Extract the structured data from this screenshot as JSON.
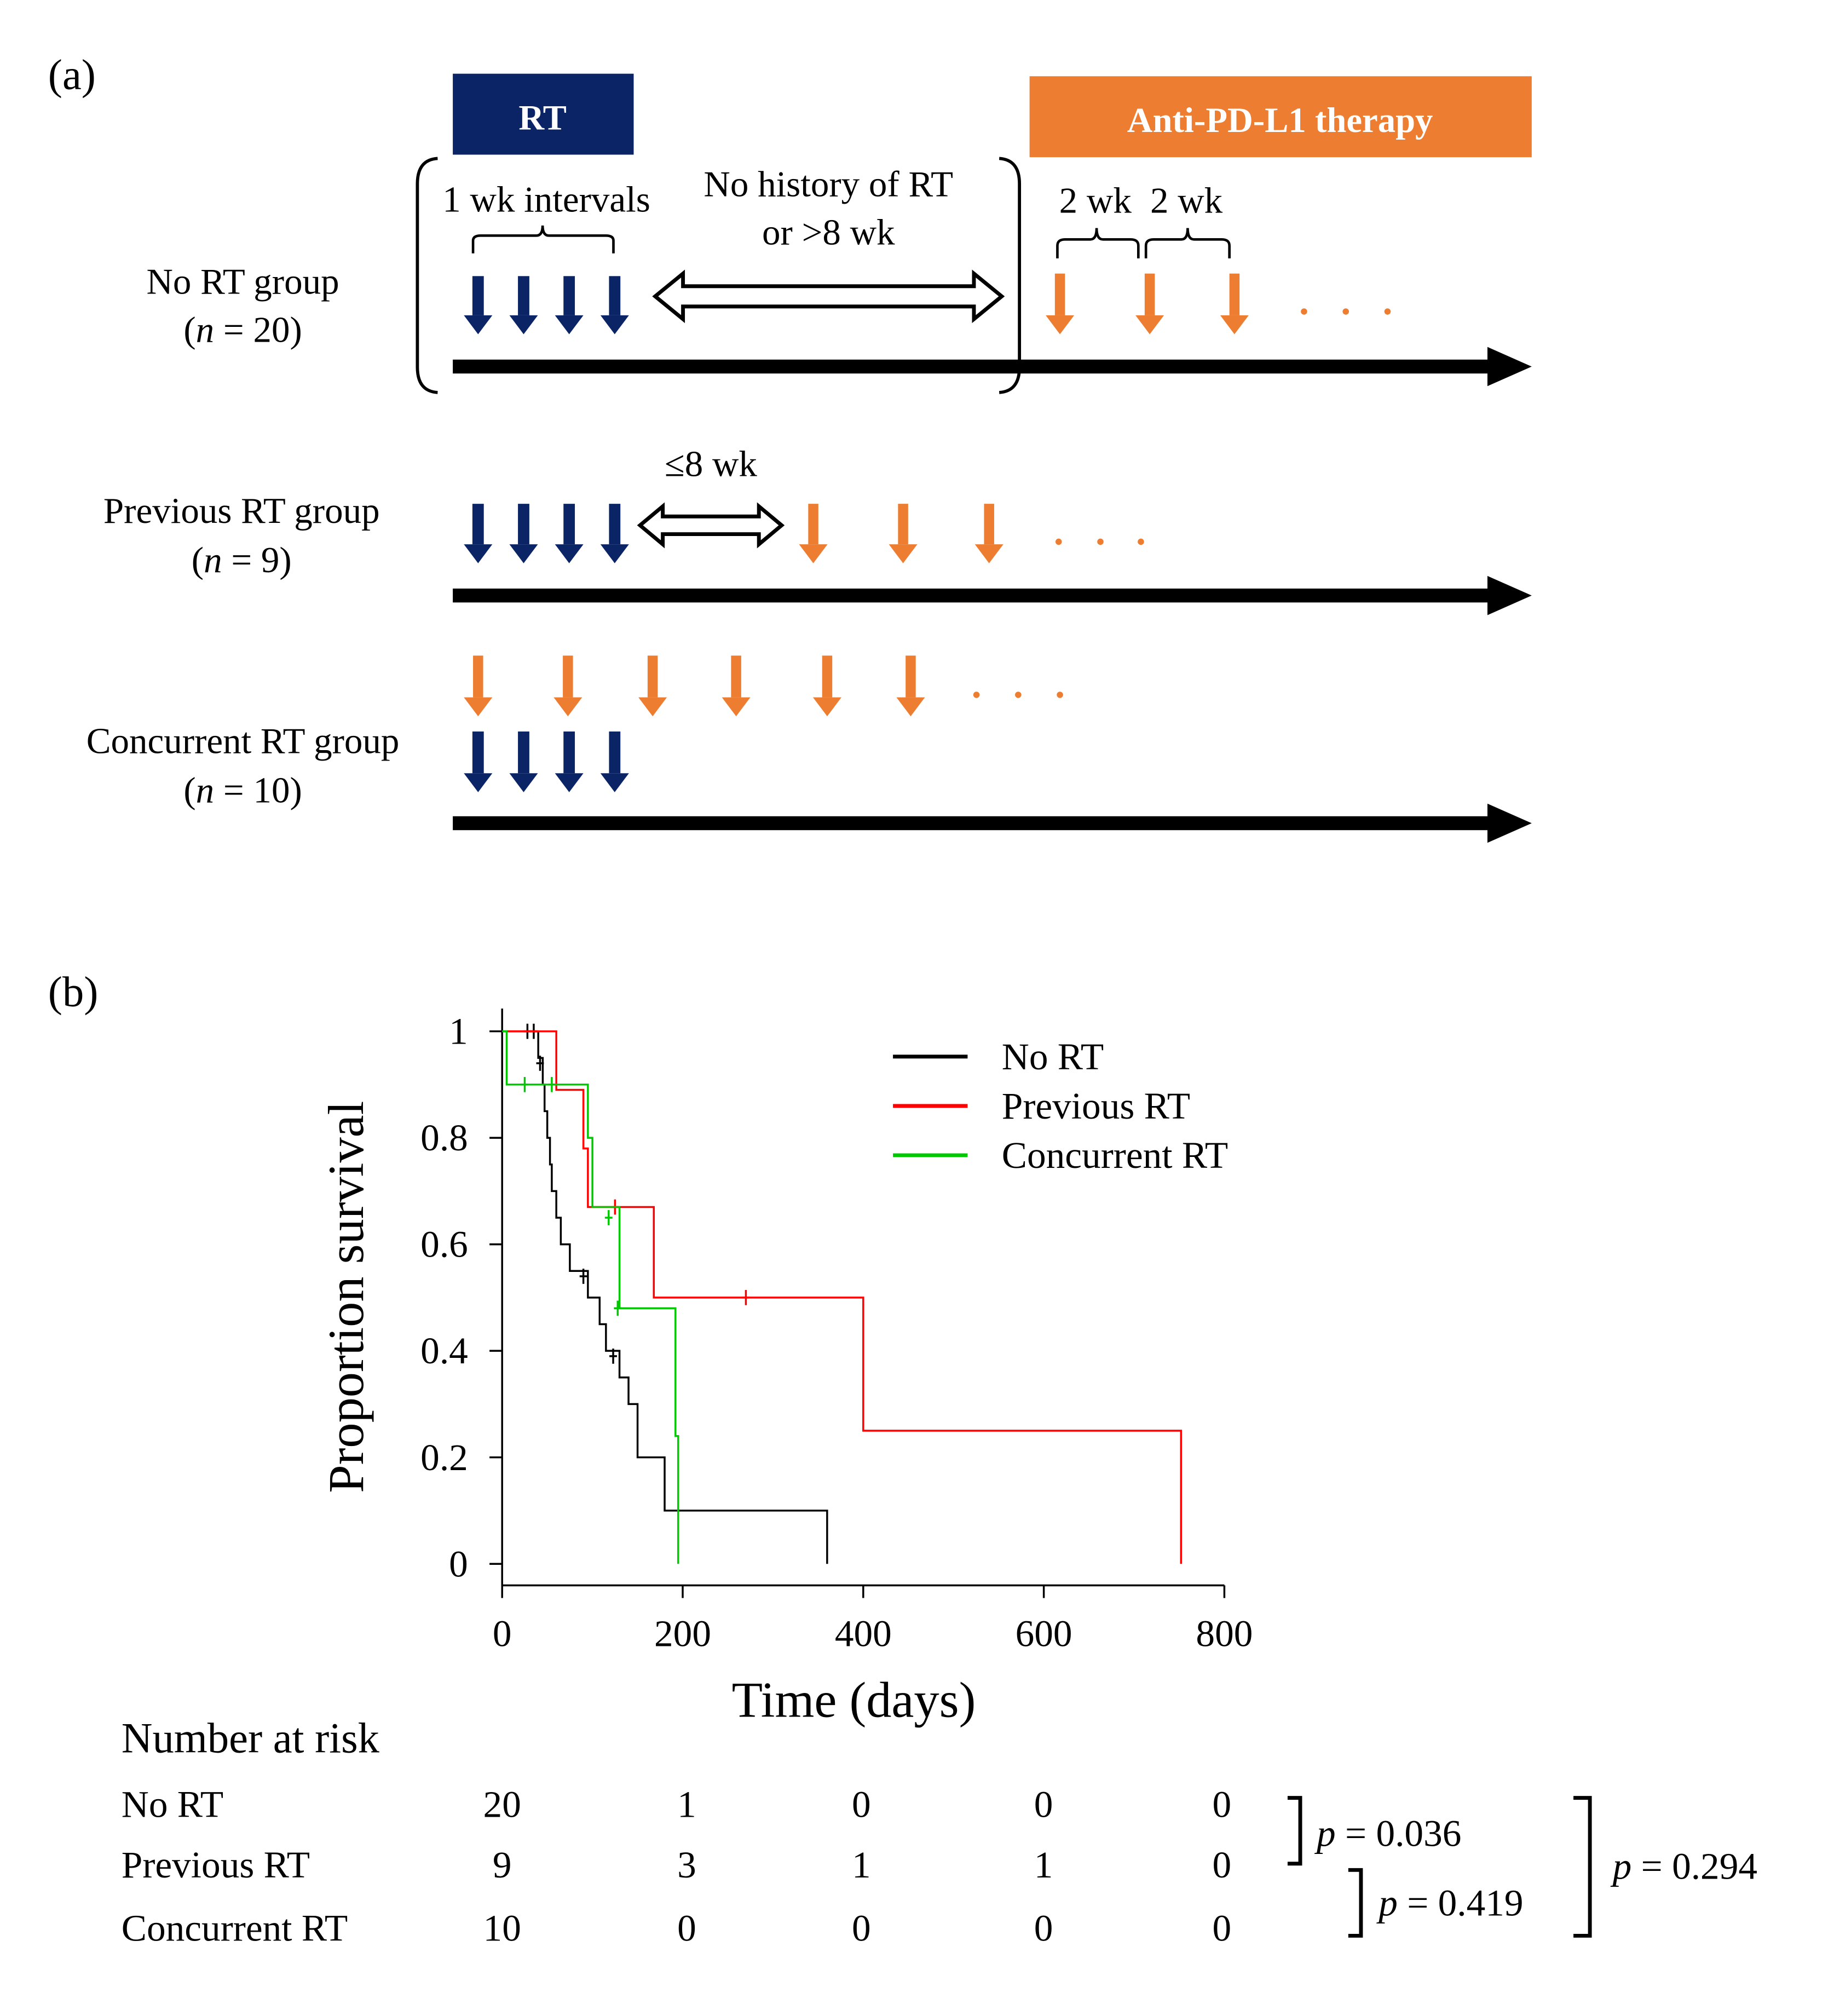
{
  "panel_a": {
    "label": "(a)",
    "rt_box_label": "RT",
    "therapy_box_label": "Anti-PD-L1 therapy",
    "interval_label": "1 wk intervals",
    "no_history_line1": "No history of RT",
    "no_history_line2": "or >8 wk",
    "two_wk_1": "2 wk",
    "two_wk_2": "2 wk",
    "le8wk": "≤8 wk",
    "groups": [
      {
        "name": "No RT group",
        "n_prefix": "(",
        "n_italic": "n",
        "n_suffix": " = 20)"
      },
      {
        "name": "Previous RT group",
        "n_prefix": "(",
        "n_italic": "n",
        "n_suffix": " = 9)"
      },
      {
        "name": "Concurrent RT group",
        "n_prefix": "(",
        "n_italic": "n",
        "n_suffix": " = 10)"
      }
    ],
    "colors": {
      "rt": "#0a2466",
      "therapy": "#ed7d31"
    }
  },
  "panel_b": {
    "label": "(b)",
    "risk_title": "Number at risk",
    "risk_rows": [
      {
        "name": "No RT",
        "values": [
          "20",
          "1",
          "0",
          "0",
          "0"
        ]
      },
      {
        "name": "Previous RT",
        "values": [
          "9",
          "3",
          "1",
          "1",
          "0"
        ]
      },
      {
        "name": "Concurrent RT",
        "values": [
          "10",
          "0",
          "0",
          "0",
          "0"
        ]
      }
    ],
    "pvalues": [
      {
        "p": "p",
        "text": " = 0.036"
      },
      {
        "p": "p",
        "text": " = 0.419"
      },
      {
        "p": "p",
        "text": " = 0.294"
      }
    ]
  },
  "chart_data": {
    "type": "line",
    "title": "",
    "xlabel": "Time (days)",
    "ylabel": "Proportion survival",
    "xlim": [
      0,
      800
    ],
    "ylim": [
      0,
      1
    ],
    "x_ticks": [
      "0",
      "200",
      "400",
      "600",
      "800"
    ],
    "y_ticks": [
      "0",
      "0.2",
      "0.4",
      "0.6",
      "0.8",
      "1"
    ],
    "legend_position": "top-right",
    "series": [
      {
        "name": "No RT",
        "color": "#000000",
        "steps": [
          [
            0,
            1.0
          ],
          [
            40,
            0.95
          ],
          [
            45,
            0.9
          ],
          [
            47,
            0.85
          ],
          [
            50,
            0.8
          ],
          [
            53,
            0.75
          ],
          [
            55,
            0.7
          ],
          [
            60,
            0.65
          ],
          [
            65,
            0.6
          ],
          [
            75,
            0.55
          ],
          [
            85,
            0.55
          ],
          [
            95,
            0.5
          ],
          [
            108,
            0.45
          ],
          [
            115,
            0.4
          ],
          [
            130,
            0.35
          ],
          [
            140,
            0.3
          ],
          [
            150,
            0.2
          ],
          [
            180,
            0.1
          ],
          [
            360,
            0.0
          ]
        ],
        "censored": [
          [
            28,
            1.0
          ],
          [
            35,
            1.0
          ],
          [
            42,
            0.94
          ],
          [
            90,
            0.54
          ],
          [
            123,
            0.39
          ]
        ]
      },
      {
        "name": "Previous RT",
        "color": "#ff0000",
        "steps": [
          [
            0,
            1.0
          ],
          [
            60,
            0.89
          ],
          [
            90,
            0.78
          ],
          [
            95,
            0.67
          ],
          [
            168,
            0.5
          ],
          [
            400,
            0.25
          ],
          [
            752,
            0.0
          ]
        ],
        "censored": [
          [
            125,
            0.67
          ],
          [
            270,
            0.5
          ]
        ]
      },
      {
        "name": "Concurrent RT",
        "color": "#00c800",
        "steps": [
          [
            0,
            1.0
          ],
          [
            5,
            0.9
          ],
          [
            95,
            0.8
          ],
          [
            100,
            0.67
          ],
          [
            130,
            0.65
          ],
          [
            130,
            0.48
          ],
          [
            192,
            0.24
          ],
          [
            195,
            0.0
          ]
        ],
        "censored": [
          [
            25,
            0.9
          ],
          [
            55,
            0.9
          ],
          [
            118,
            0.65
          ],
          [
            128,
            0.48
          ]
        ]
      }
    ]
  }
}
